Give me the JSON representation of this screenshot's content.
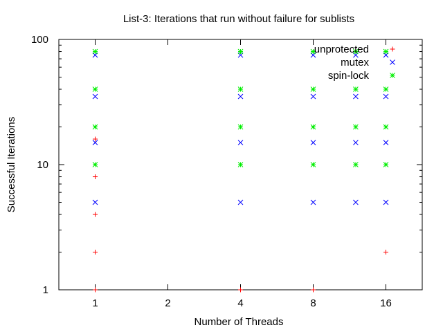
{
  "chart_data": {
    "type": "scatter",
    "title": "List-3: Iterations that run without failure for sublists",
    "xlabel": "Number of Threads",
    "ylabel": "Successful Iterations",
    "x_scale": "log2",
    "y_scale": "log10",
    "xlim": [
      0.707,
      22.63
    ],
    "ylim": [
      1,
      100
    ],
    "x_ticks": [
      1,
      2,
      4,
      8,
      16
    ],
    "y_ticks": [
      1,
      10,
      100
    ],
    "grid": false,
    "legend_position": "top-right",
    "series": [
      {
        "name": "unprotected",
        "marker": "plus",
        "color": "#ff0000",
        "points": [
          {
            "x": 1,
            "y": 1
          },
          {
            "x": 1,
            "y": 2
          },
          {
            "x": 1,
            "y": 4
          },
          {
            "x": 1,
            "y": 8
          },
          {
            "x": 1,
            "y": 16
          },
          {
            "x": 4,
            "y": 1
          },
          {
            "x": 8,
            "y": 1
          },
          {
            "x": 16,
            "y": 2
          }
        ]
      },
      {
        "name": "mutex",
        "marker": "cross",
        "color": "#0000ff",
        "points": [
          {
            "x": 1,
            "y": 5
          },
          {
            "x": 1,
            "y": 15
          },
          {
            "x": 1,
            "y": 35
          },
          {
            "x": 1,
            "y": 75
          },
          {
            "x": 4,
            "y": 5
          },
          {
            "x": 4,
            "y": 15
          },
          {
            "x": 4,
            "y": 35
          },
          {
            "x": 4,
            "y": 75
          },
          {
            "x": 8,
            "y": 5
          },
          {
            "x": 8,
            "y": 15
          },
          {
            "x": 8,
            "y": 35
          },
          {
            "x": 8,
            "y": 75
          },
          {
            "x": 12,
            "y": 5
          },
          {
            "x": 12,
            "y": 15
          },
          {
            "x": 12,
            "y": 35
          },
          {
            "x": 12,
            "y": 75
          },
          {
            "x": 16,
            "y": 5
          },
          {
            "x": 16,
            "y": 15
          },
          {
            "x": 16,
            "y": 35
          },
          {
            "x": 16,
            "y": 75
          }
        ]
      },
      {
        "name": "spin-lock",
        "marker": "star",
        "color": "#00ee00",
        "points": [
          {
            "x": 1,
            "y": 10
          },
          {
            "x": 1,
            "y": 20
          },
          {
            "x": 1,
            "y": 40
          },
          {
            "x": 1,
            "y": 80
          },
          {
            "x": 4,
            "y": 10
          },
          {
            "x": 4,
            "y": 20
          },
          {
            "x": 4,
            "y": 40
          },
          {
            "x": 4,
            "y": 80
          },
          {
            "x": 8,
            "y": 10
          },
          {
            "x": 8,
            "y": 20
          },
          {
            "x": 8,
            "y": 40
          },
          {
            "x": 8,
            "y": 80
          },
          {
            "x": 12,
            "y": 10
          },
          {
            "x": 12,
            "y": 20
          },
          {
            "x": 12,
            "y": 40
          },
          {
            "x": 12,
            "y": 80
          },
          {
            "x": 16,
            "y": 10
          },
          {
            "x": 16,
            "y": 20
          },
          {
            "x": 16,
            "y": 40
          },
          {
            "x": 16,
            "y": 80
          }
        ]
      }
    ]
  }
}
